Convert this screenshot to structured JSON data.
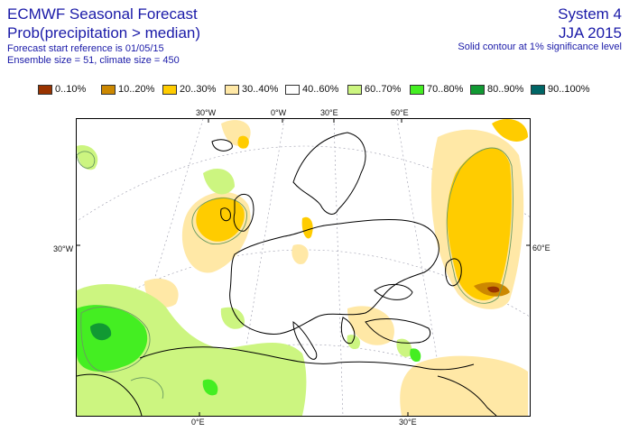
{
  "header": {
    "title": "ECMWF Seasonal Forecast",
    "subtitle": "Prob(precipitation > median)",
    "start_ref": "Forecast start reference is 01/05/15",
    "ensemble": "Ensemble size = 51, climate size = 450",
    "system": "System 4",
    "season": "JJA 2015",
    "contour_note": "Solid contour at 1% significance level"
  },
  "legend": [
    {
      "label": "0..10%",
      "color": "#993300"
    },
    {
      "label": "10..20%",
      "color": "#cc8800"
    },
    {
      "label": "20..30%",
      "color": "#ffcc00"
    },
    {
      "label": "30..40%",
      "color": "#ffe8a6"
    },
    {
      "label": "40..60%",
      "color": "#ffffff"
    },
    {
      "label": "60..70%",
      "color": "#ccf580"
    },
    {
      "label": "70..80%",
      "color": "#44ee22"
    },
    {
      "label": "80..90%",
      "color": "#119933"
    },
    {
      "label": "90..100%",
      "color": "#006666"
    }
  ],
  "map_labels": {
    "top": [
      "30°W",
      "0°W",
      "30°E",
      "60°E"
    ],
    "left": "30°W",
    "right": "60°E",
    "bottom": [
      "0°E",
      "30°E"
    ]
  }
}
